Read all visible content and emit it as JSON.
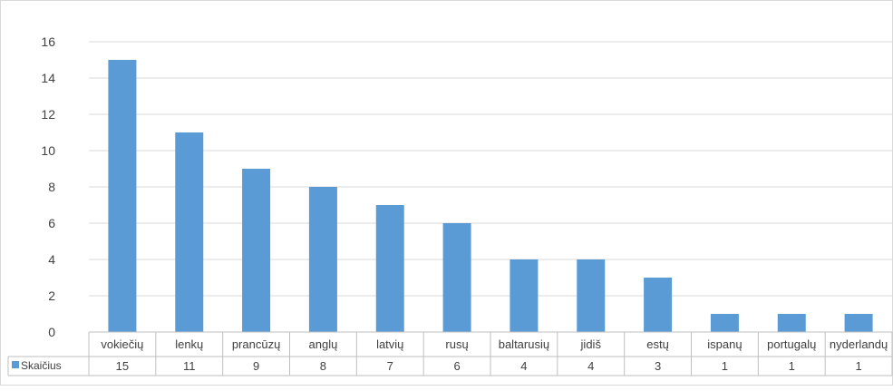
{
  "chart_data": {
    "type": "bar",
    "categories": [
      "vokiečių",
      "lenkų",
      "prancūzų",
      "anglų",
      "latvių",
      "rusų",
      "baltarusių",
      "jidiš",
      "estų",
      "ispanų",
      "portugalų",
      "nyderlandų"
    ],
    "series": [
      {
        "name": "Skaičius",
        "values": [
          15,
          11,
          9,
          8,
          7,
          6,
          4,
          4,
          3,
          1,
          1,
          1
        ],
        "color": "#5b9bd5"
      }
    ],
    "ylim": [
      0,
      16
    ],
    "yticks": [
      0,
      2,
      4,
      6,
      8,
      10,
      12,
      14,
      16
    ],
    "grid": true,
    "legend": "data-table-left",
    "data_table": true
  }
}
